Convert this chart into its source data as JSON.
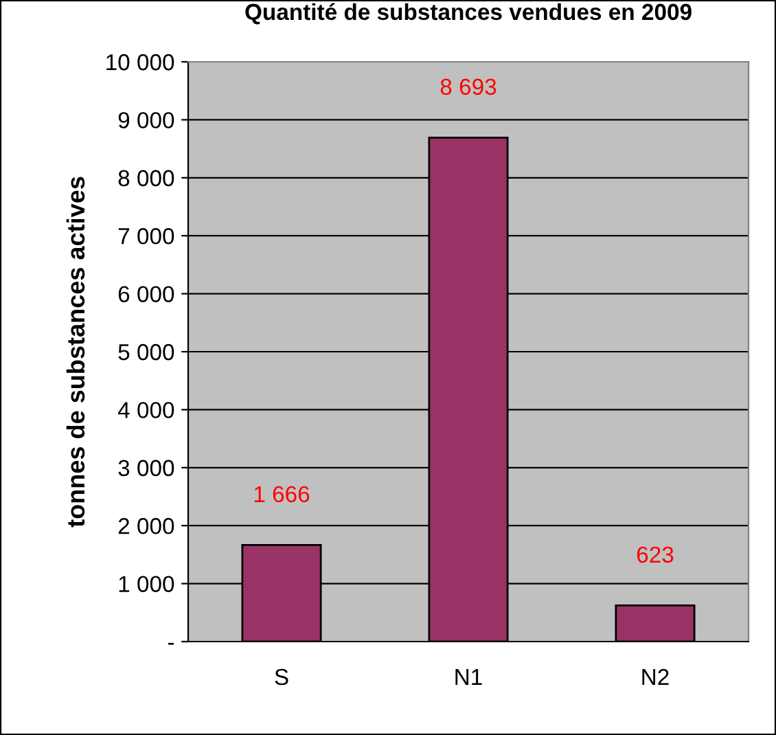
{
  "chart_data": {
    "type": "bar",
    "title": "Quantité de substances vendues en 2009",
    "ylabel": "tonnes de substances actives",
    "categories": [
      "S",
      "N1",
      "N2"
    ],
    "values": [
      1666,
      8693,
      623
    ],
    "color": "#993366",
    "value_labels": [
      "1 666",
      "8 693",
      "623"
    ],
    "ylim": [
      0,
      10000
    ],
    "yticks": [
      {
        "value": 0,
        "label": "-"
      },
      {
        "value": 1000,
        "label": "1 000"
      },
      {
        "value": 2000,
        "label": "2 000"
      },
      {
        "value": 3000,
        "label": "3 000"
      },
      {
        "value": 4000,
        "label": "4 000"
      },
      {
        "value": 5000,
        "label": "5 000"
      },
      {
        "value": 6000,
        "label": "6 000"
      },
      {
        "value": 7000,
        "label": "7 000"
      },
      {
        "value": 8000,
        "label": "8 000"
      },
      {
        "value": 9000,
        "label": "9 000"
      },
      {
        "value": 10000,
        "label": "10 000"
      }
    ],
    "grid": "y",
    "legend": false
  }
}
